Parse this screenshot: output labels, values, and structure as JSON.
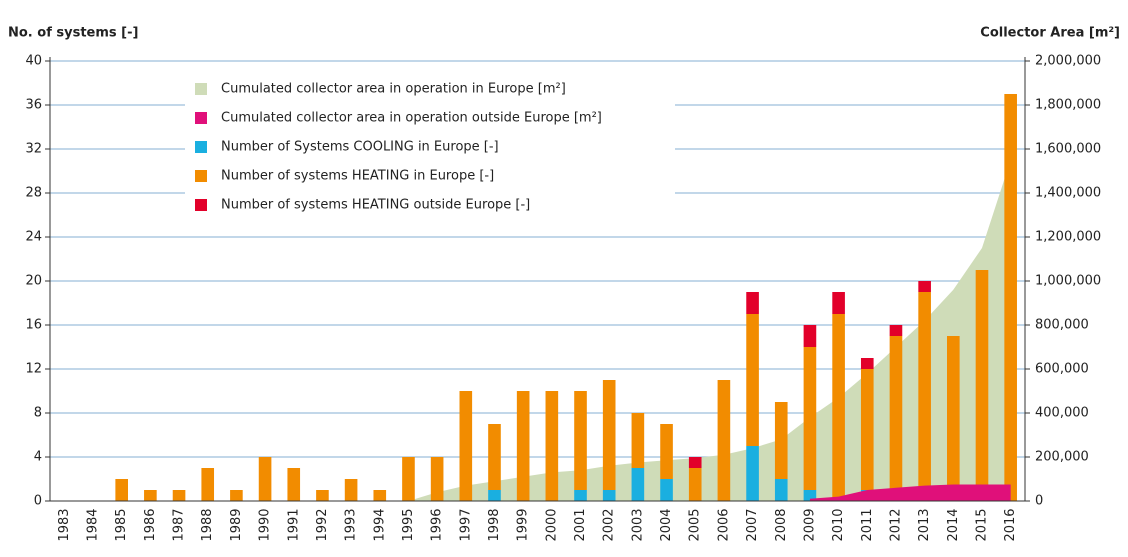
{
  "chart_data": {
    "type": "bar",
    "y_label": "No. of systems [-]",
    "y2_label": "Collector Area [m²]",
    "categories": [
      "1983",
      "1984",
      "1985",
      "1986",
      "1987",
      "1988",
      "1989",
      "1990",
      "1991",
      "1992",
      "1993",
      "1994",
      "1995",
      "1996",
      "1997",
      "1998",
      "1999",
      "2000",
      "2001",
      "2002",
      "2003",
      "2004",
      "2005",
      "2006",
      "2007",
      "2008",
      "2009",
      "2010",
      "2011",
      "2012",
      "2013",
      "2014",
      "2015",
      "2016"
    ],
    "series": [
      {
        "name": "Cumulated collector area in operation in  Europe [m²]",
        "color": "#cfdcb8",
        "kind": "area",
        "axis": "y2",
        "values": [
          0,
          0,
          0,
          0,
          0,
          0,
          0,
          0,
          0,
          0,
          0,
          0,
          0,
          40000,
          70000,
          90000,
          110000,
          130000,
          140000,
          160000,
          175000,
          185000,
          195000,
          210000,
          240000,
          280000,
          380000,
          470000,
          580000,
          700000,
          820000,
          960000,
          1150000,
          1550000
        ]
      },
      {
        "name": "Cumulated collector area in operation outside Europe [m²]",
        "color": "#e0107a",
        "kind": "area",
        "axis": "y2",
        "values": [
          null,
          null,
          null,
          null,
          null,
          null,
          null,
          null,
          null,
          null,
          null,
          null,
          null,
          null,
          null,
          null,
          null,
          null,
          null,
          null,
          null,
          null,
          null,
          null,
          null,
          null,
          10000,
          20000,
          50000,
          60000,
          70000,
          75000,
          75000,
          75000
        ]
      },
      {
        "name": "Number of Systems COOLING in Europe [-]",
        "color": "#1aafe0",
        "kind": "bar",
        "values": [
          0,
          0,
          0,
          0,
          0,
          0,
          0,
          0,
          0,
          0,
          0,
          0,
          0,
          0,
          0,
          1,
          0,
          0,
          1,
          1,
          3,
          2,
          0,
          0,
          5,
          2,
          1,
          0,
          1,
          0,
          0,
          1,
          0,
          0
        ]
      },
      {
        "name": "Number of systems HEATING in Europe [-]",
        "color": "#f28c00",
        "kind": "bar",
        "values": [
          0,
          0,
          2,
          1,
          1,
          3,
          1,
          4,
          3,
          1,
          2,
          1,
          4,
          4,
          10,
          6,
          10,
          10,
          9,
          10,
          5,
          5,
          3,
          11,
          12,
          7,
          13,
          17,
          11,
          15,
          19,
          14,
          21,
          37
        ]
      },
      {
        "name": "Number of systems HEATING outside Europe [-]",
        "color": "#e2002a",
        "kind": "bar",
        "values": [
          0,
          0,
          0,
          0,
          0,
          0,
          0,
          0,
          0,
          0,
          0,
          0,
          0,
          0,
          0,
          0,
          0,
          0,
          0,
          0,
          0,
          0,
          1,
          0,
          2,
          0,
          2,
          2,
          1,
          1,
          1,
          0,
          0,
          0
        ]
      }
    ],
    "ylim": [
      0,
      40
    ],
    "yticks": [
      0,
      4,
      8,
      12,
      16,
      20,
      24,
      28,
      32,
      36,
      40
    ],
    "y2lim": [
      0,
      2000000
    ],
    "y2ticks": [
      0,
      {
        "value": 200000,
        "label": "200,000"
      },
      {
        "value": 400000,
        "label": "400,000"
      },
      {
        "value": 600000,
        "label": "600,000"
      },
      {
        "value": 800000,
        "label": "800,000"
      },
      {
        "value": 1000000,
        "label": "1,000,000"
      },
      {
        "value": 1200000,
        "label": "1,200,000"
      },
      {
        "value": 1400000,
        "label": "1,400,000"
      },
      {
        "value": 1600000,
        "label": "1,600,000"
      },
      {
        "value": 1800000,
        "label": "1,800,000"
      },
      {
        "value": 2000000,
        "label": "2,000,000"
      }
    ],
    "grid": true,
    "legend": "upper left"
  }
}
